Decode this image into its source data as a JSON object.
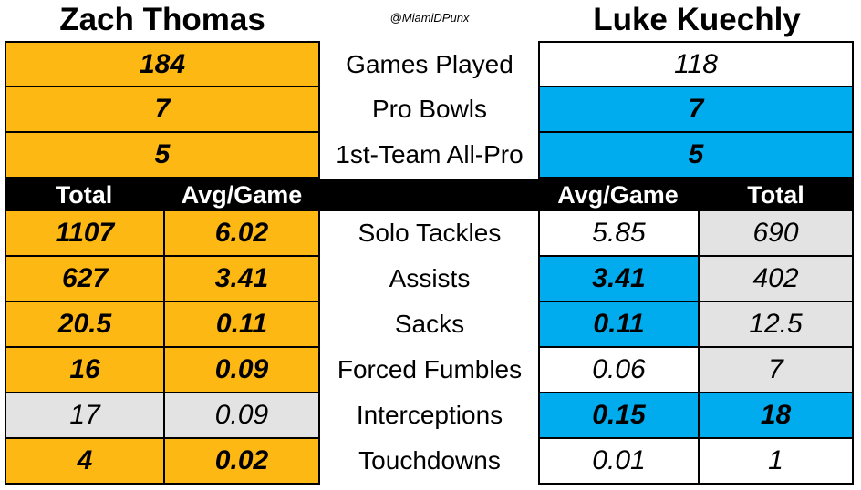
{
  "header": {
    "left_player": "Zach Thomas",
    "right_player": "Luke Kuechly",
    "handle": "@MiamiDPunx"
  },
  "top_stats": [
    {
      "label": "Games Played",
      "left": "184",
      "right": "118"
    },
    {
      "label": "Pro Bowls",
      "left": "7",
      "right": "7"
    },
    {
      "label": "1st-Team All-Pro",
      "left": "5",
      "right": "5"
    }
  ],
  "column_headers": {
    "left_total": "Total",
    "left_avg": "Avg/Game",
    "right_avg": "Avg/Game",
    "right_total": "Total"
  },
  "stats": [
    {
      "label": "Solo Tackles",
      "left_total": "1107",
      "left_avg": "6.02",
      "right_avg": "5.85",
      "right_total": "690"
    },
    {
      "label": "Assists",
      "left_total": "627",
      "left_avg": "3.41",
      "right_avg": "3.41",
      "right_total": "402"
    },
    {
      "label": "Sacks",
      "left_total": "20.5",
      "left_avg": "0.11",
      "right_avg": "0.11",
      "right_total": "12.5"
    },
    {
      "label": "Forced Fumbles",
      "left_total": "16",
      "left_avg": "0.09",
      "right_avg": "0.06",
      "right_total": "7"
    },
    {
      "label": "Interceptions",
      "left_total": "17",
      "left_avg": "0.09",
      "right_avg": "0.15",
      "right_total": "18"
    },
    {
      "label": "Touchdowns",
      "left_total": "4",
      "left_avg": "0.02",
      "right_avg": "0.01",
      "right_total": "1"
    }
  ],
  "colors": {
    "zach_highlight": "#FDB813",
    "kuechly_highlight": "#00ACED",
    "neutral_grey": "#E3E3E3",
    "header_bar": "#000000"
  }
}
